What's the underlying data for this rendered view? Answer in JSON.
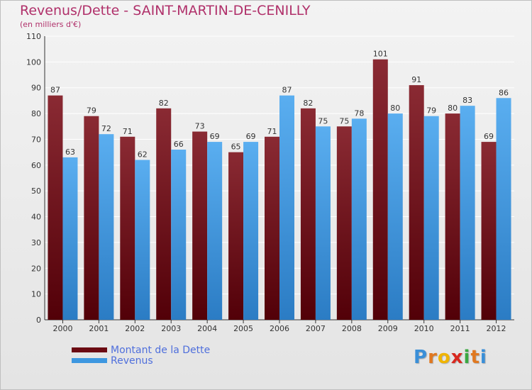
{
  "title": "Revenus/Dette - SAINT-MARTIN-DE-CENILLY",
  "subtitle": "(en milliers d'€)",
  "colors": {
    "title": "#b0306a",
    "dette": "#7a0f1a",
    "revenus": "#3d97e0",
    "legend_text": "#4f6fdc"
  },
  "legend": [
    {
      "label": "Montant de la Dette",
      "color": "#6b0a12"
    },
    {
      "label": "Revenus",
      "color": "#3d97e0"
    }
  ],
  "logo": {
    "letters": [
      "P",
      "r",
      "o",
      "x",
      "i",
      "t",
      "i"
    ],
    "colors": [
      "#3a8fd8",
      "#e07820",
      "#f0b400",
      "#d8281f",
      "#3aa842",
      "#e07820",
      "#3a8fd8"
    ]
  },
  "chart_data": {
    "type": "bar",
    "categories": [
      "2000",
      "2001",
      "2002",
      "2003",
      "2004",
      "2005",
      "2006",
      "2007",
      "2008",
      "2009",
      "2010",
      "2011",
      "2012"
    ],
    "series": [
      {
        "name": "Montant de la Dette",
        "values": [
          87,
          79,
          71,
          82,
          73,
          65,
          71,
          82,
          75,
          101,
          91,
          80,
          69
        ]
      },
      {
        "name": "Revenus",
        "values": [
          63,
          72,
          62,
          66,
          69,
          69,
          87,
          75,
          78,
          80,
          79,
          83,
          86
        ]
      }
    ],
    "ylim": [
      0,
      110
    ],
    "yticks": [
      0,
      10,
      20,
      30,
      40,
      50,
      60,
      70,
      80,
      90,
      100,
      110
    ],
    "grid": true,
    "legend_position": "bottom-left"
  }
}
